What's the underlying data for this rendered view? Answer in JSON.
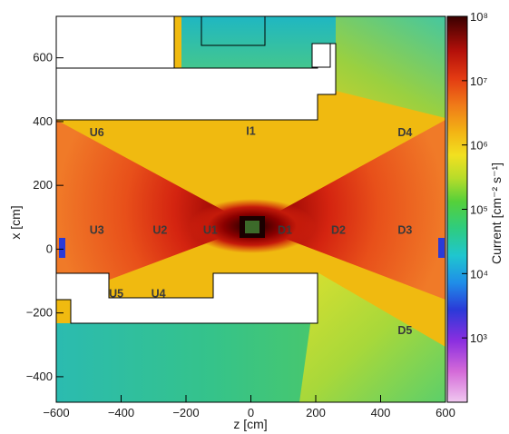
{
  "chart_data": {
    "type": "heatmap",
    "xlabel": "z [cm]",
    "ylabel": "x [cm]",
    "xlim": [
      -600,
      600
    ],
    "ylim": [
      -480,
      730
    ],
    "x_ticks": [
      -600,
      -400,
      -200,
      0,
      200,
      400,
      600
    ],
    "y_ticks": [
      -400,
      -200,
      0,
      200,
      400,
      600
    ],
    "x_tick_labels": [
      "−600",
      "−400",
      "−200",
      "0",
      "200",
      "400",
      "600"
    ],
    "y_tick_labels": [
      "−400",
      "−200",
      "0",
      "200",
      "400",
      "600"
    ],
    "colorbar": {
      "label": "Current [cm⁻² s⁻¹]",
      "scale": "log",
      "range": [
        100,
        100000000
      ],
      "tick_labels": [
        "10³",
        "10⁴",
        "10⁵",
        "10⁶",
        "10⁷",
        "10⁸"
      ],
      "tick_exponents": [
        3,
        4,
        5,
        6,
        7,
        8
      ]
    },
    "regions": [
      {
        "label": "U6",
        "z": -475,
        "x": 365
      },
      {
        "label": "I1",
        "z": 0,
        "x": 370
      },
      {
        "label": "D4",
        "z": 475,
        "x": 365
      },
      {
        "label": "U3",
        "z": -475,
        "x": 60
      },
      {
        "label": "U2",
        "z": -280,
        "x": 60
      },
      {
        "label": "U1",
        "z": -125,
        "x": 60
      },
      {
        "label": "D1",
        "z": 105,
        "x": 60
      },
      {
        "label": "D2",
        "z": 270,
        "x": 60
      },
      {
        "label": "D3",
        "z": 475,
        "x": 60
      },
      {
        "label": "U5",
        "z": -415,
        "x": -140
      },
      {
        "label": "U4",
        "z": -285,
        "x": -140
      },
      {
        "label": "D5",
        "z": 475,
        "x": -255
      }
    ],
    "colors": {
      "background_flux": "#f0ba10",
      "shield_blocks": "#ffffff"
    }
  }
}
